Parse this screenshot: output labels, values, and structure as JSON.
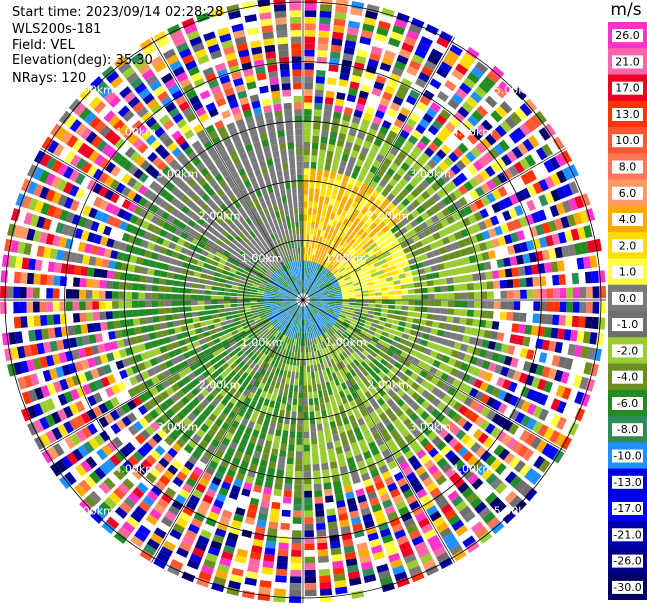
{
  "header": {
    "start_time": "Start time: 2023/09/14 02:28:28",
    "instrument": "WLS200s-181",
    "field": "Field: VEL",
    "elevation": "Elevation(deg): 35.30",
    "nrays": "NRays: 120"
  },
  "chart_data": {
    "type": "heatmap",
    "projection": "polar-ppi",
    "nrays": 120,
    "range_rings_km": [
      1,
      2,
      3,
      4,
      5
    ],
    "ring_labels": [
      "1.00km",
      "2.00km",
      "3.00km",
      "4.00km",
      "5.00km"
    ],
    "spokes_deg": [
      0,
      30,
      60,
      90,
      120,
      150,
      180,
      210,
      240,
      270,
      300,
      330
    ],
    "colorbar": {
      "title": "m/s",
      "ticks": [
        "26.0",
        "21.0",
        "17.0",
        "13.0",
        "10.0",
        "8.0",
        "6.0",
        "4.0",
        "2.0",
        "1.0",
        "0.0",
        "-1.0",
        "-2.0",
        "-4.0",
        "-6.0",
        "-8.0",
        "-10.0",
        "-13.0",
        "-17.0",
        "-21.0",
        "-26.0",
        "-30.0"
      ],
      "colors": [
        "#ff33cc",
        "#ff66aa",
        "#ee0022",
        "#ff3300",
        "#ff5533",
        "#ff7755",
        "#ff9966",
        "#ffaa00",
        "#ffdd00",
        "#ffff44",
        "#7a7a7a",
        "#6e6e6e",
        "#9acd32",
        "#6b8e23",
        "#228b22",
        "#2e8b57",
        "#1e90ff",
        "#0000dd",
        "#0000ff",
        "#0000aa",
        "#00008b",
        "#000066"
      ]
    }
  }
}
